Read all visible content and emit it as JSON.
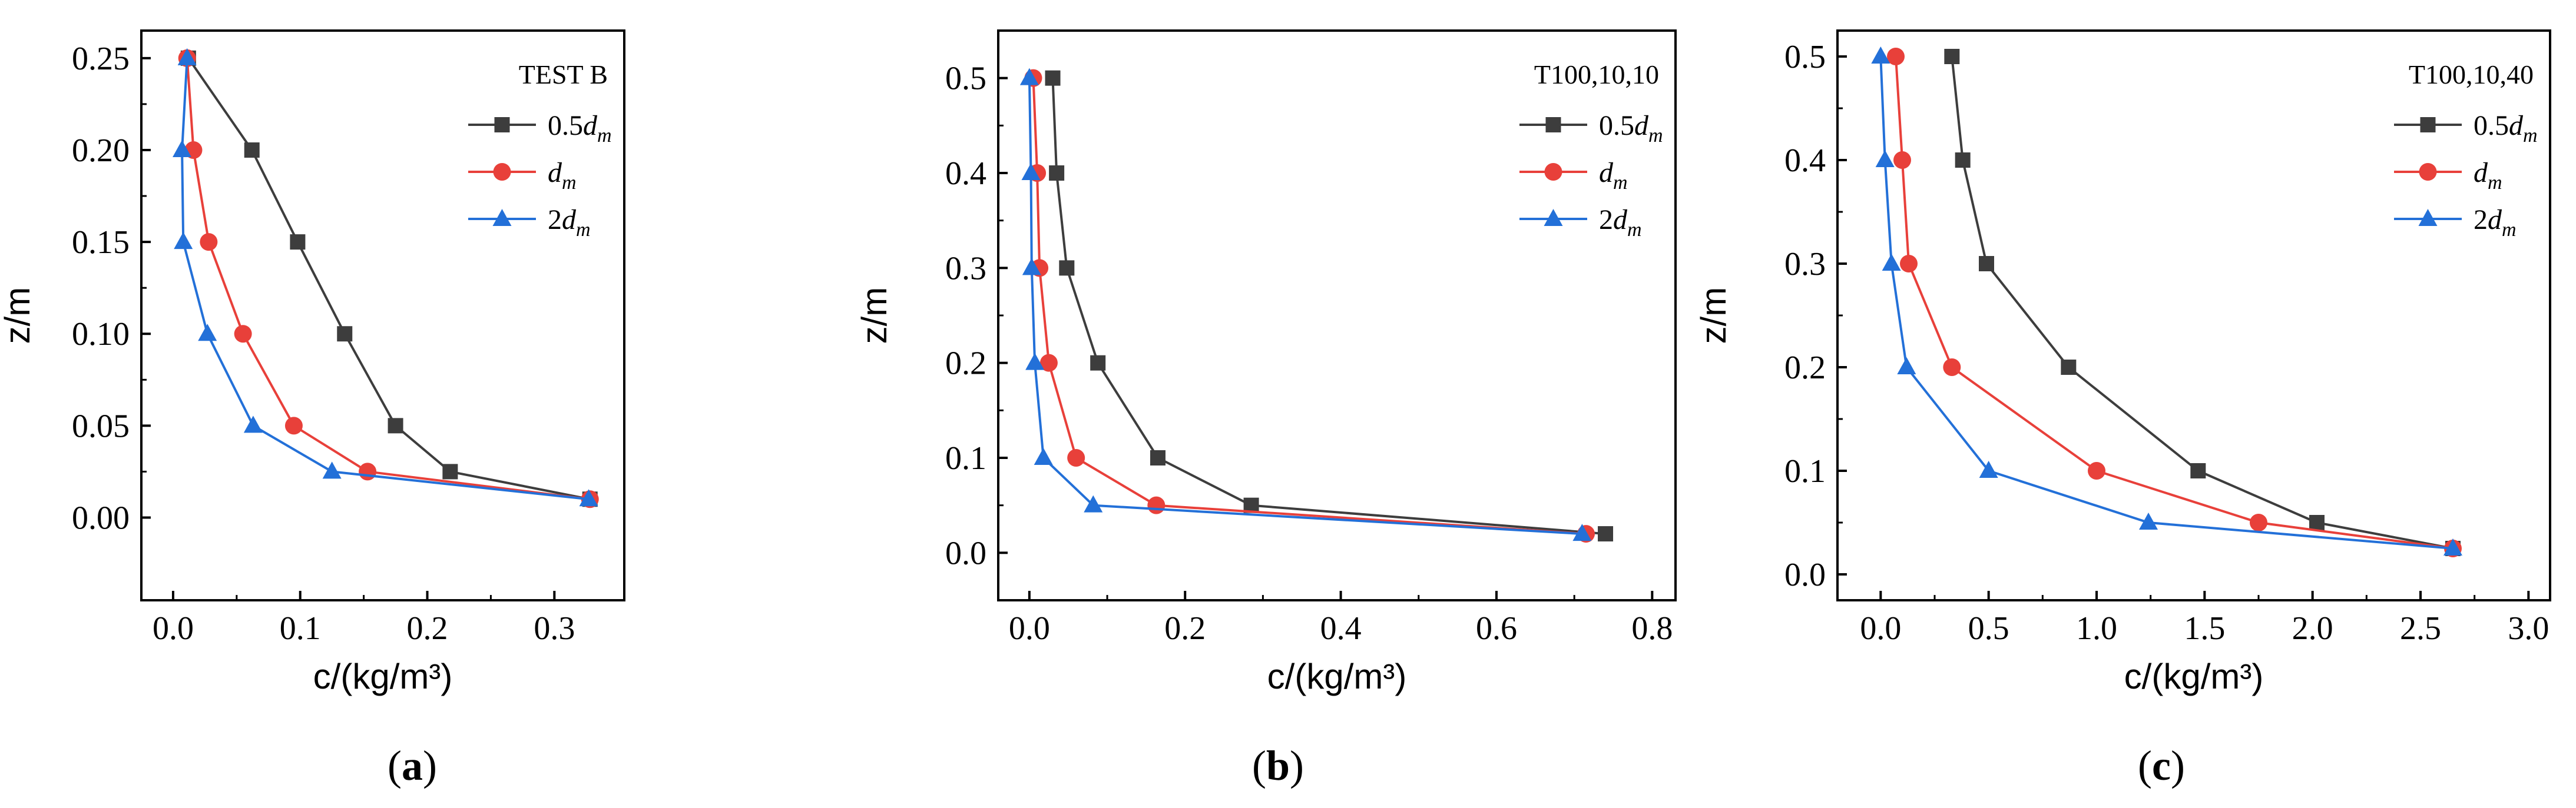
{
  "colors": {
    "series_0_5dm": "#3d3d3d",
    "series_dm": "#e8403a",
    "series_2dm": "#2370d8"
  },
  "panels": [
    {
      "label": "a"
    },
    {
      "label": "b"
    },
    {
      "label": "c"
    }
  ],
  "chart_data": [
    {
      "type": "line",
      "panel": "a",
      "title": "TEST B",
      "xlabel": "c/(kg/m³)",
      "ylabel": "z/m",
      "xlim": [
        -0.025,
        0.355
      ],
      "ylim": [
        -0.045,
        0.265
      ],
      "xticks": [
        0.0,
        0.1,
        0.2,
        0.3
      ],
      "xtick_labels": [
        "0.0",
        "0.1",
        "0.2",
        "0.3"
      ],
      "yticks": [
        0.0,
        0.05,
        0.1,
        0.15,
        0.2,
        0.25
      ],
      "ytick_labels": [
        "0.00",
        "0.05",
        "0.10",
        "0.15",
        "0.20",
        "0.25"
      ],
      "legend_position": "top-right",
      "series": [
        {
          "name": "0.5d_m",
          "prefix": "0.5",
          "marker": "square",
          "points": [
            [
              0.012,
              0.25
            ],
            [
              0.062,
              0.2
            ],
            [
              0.098,
              0.15
            ],
            [
              0.135,
              0.1
            ],
            [
              0.175,
              0.05
            ],
            [
              0.218,
              0.025
            ],
            [
              0.328,
              0.01
            ]
          ]
        },
        {
          "name": "d_m",
          "prefix": "",
          "marker": "circle",
          "points": [
            [
              0.011,
              0.25
            ],
            [
              0.016,
              0.2
            ],
            [
              0.028,
              0.15
            ],
            [
              0.055,
              0.1
            ],
            [
              0.095,
              0.05
            ],
            [
              0.153,
              0.025
            ],
            [
              0.328,
              0.01
            ]
          ]
        },
        {
          "name": "2d_m",
          "prefix": "2",
          "marker": "triangle",
          "points": [
            [
              0.011,
              0.25
            ],
            [
              0.007,
              0.2
            ],
            [
              0.008,
              0.15
            ],
            [
              0.027,
              0.1
            ],
            [
              0.063,
              0.05
            ],
            [
              0.125,
              0.025
            ],
            [
              0.327,
              0.01
            ]
          ]
        }
      ]
    },
    {
      "type": "line",
      "panel": "b",
      "title": "T100,10,10",
      "xlabel": "c/(kg/m³)",
      "ylabel": "z/m",
      "xlim": [
        -0.04,
        0.83
      ],
      "ylim": [
        -0.05,
        0.55
      ],
      "xticks": [
        0.0,
        0.2,
        0.4,
        0.6,
        0.8
      ],
      "xtick_labels": [
        "0.0",
        "0.2",
        "0.4",
        "0.6",
        "0.8"
      ],
      "yticks": [
        0.0,
        0.1,
        0.2,
        0.3,
        0.4,
        0.5
      ],
      "ytick_labels": [
        "0.0",
        "0.1",
        "0.2",
        "0.3",
        "0.4",
        "0.5"
      ],
      "legend_position": "top-right",
      "series": [
        {
          "name": "0.5d_m",
          "prefix": "0.5",
          "marker": "square",
          "points": [
            [
              0.03,
              0.5
            ],
            [
              0.035,
              0.4
            ],
            [
              0.048,
              0.3
            ],
            [
              0.088,
              0.2
            ],
            [
              0.165,
              0.1
            ],
            [
              0.285,
              0.05
            ],
            [
              0.74,
              0.02
            ]
          ]
        },
        {
          "name": "d_m",
          "prefix": "",
          "marker": "circle",
          "points": [
            [
              0.005,
              0.5
            ],
            [
              0.01,
              0.4
            ],
            [
              0.013,
              0.3
            ],
            [
              0.025,
              0.2
            ],
            [
              0.06,
              0.1
            ],
            [
              0.163,
              0.05
            ],
            [
              0.715,
              0.02
            ]
          ]
        },
        {
          "name": "2d_m",
          "prefix": "2",
          "marker": "triangle",
          "points": [
            [
              0.0,
              0.5
            ],
            [
              0.002,
              0.4
            ],
            [
              0.003,
              0.3
            ],
            [
              0.007,
              0.2
            ],
            [
              0.018,
              0.1
            ],
            [
              0.082,
              0.05
            ],
            [
              0.71,
              0.02
            ]
          ]
        }
      ]
    },
    {
      "type": "line",
      "panel": "c",
      "title": "T100,10,40",
      "xlabel": "c/(kg/m³)",
      "ylabel": "z/m",
      "xlim": [
        -0.2,
        3.1
      ],
      "ylim": [
        -0.025,
        0.525
      ],
      "xticks": [
        0.0,
        0.5,
        1.0,
        1.5,
        2.0,
        2.5,
        3.0
      ],
      "xtick_labels": [
        "0.0",
        "0.5",
        "1.0",
        "1.5",
        "2.0",
        "2.5",
        "3.0"
      ],
      "yticks": [
        0.0,
        0.1,
        0.2,
        0.3,
        0.4,
        0.5
      ],
      "ytick_labels": [
        "0.0",
        "0.1",
        "0.2",
        "0.3",
        "0.4",
        "0.5"
      ],
      "legend_position": "top-right",
      "series": [
        {
          "name": "0.5d_m",
          "prefix": "0.5",
          "marker": "square",
          "points": [
            [
              0.33,
              0.5
            ],
            [
              0.38,
              0.4
            ],
            [
              0.49,
              0.3
            ],
            [
              0.87,
              0.2
            ],
            [
              1.47,
              0.1
            ],
            [
              2.02,
              0.05
            ],
            [
              2.65,
              0.025
            ]
          ]
        },
        {
          "name": "d_m",
          "prefix": "",
          "marker": "circle",
          "points": [
            [
              0.07,
              0.5
            ],
            [
              0.1,
              0.4
            ],
            [
              0.13,
              0.3
            ],
            [
              0.33,
              0.2
            ],
            [
              1.0,
              0.1
            ],
            [
              1.75,
              0.05
            ],
            [
              2.65,
              0.025
            ]
          ]
        },
        {
          "name": "2d_m",
          "prefix": "2",
          "marker": "triangle",
          "points": [
            [
              0.0,
              0.5
            ],
            [
              0.02,
              0.4
            ],
            [
              0.05,
              0.3
            ],
            [
              0.12,
              0.2
            ],
            [
              0.5,
              0.1
            ],
            [
              1.24,
              0.05
            ],
            [
              2.65,
              0.025
            ]
          ]
        }
      ]
    }
  ]
}
